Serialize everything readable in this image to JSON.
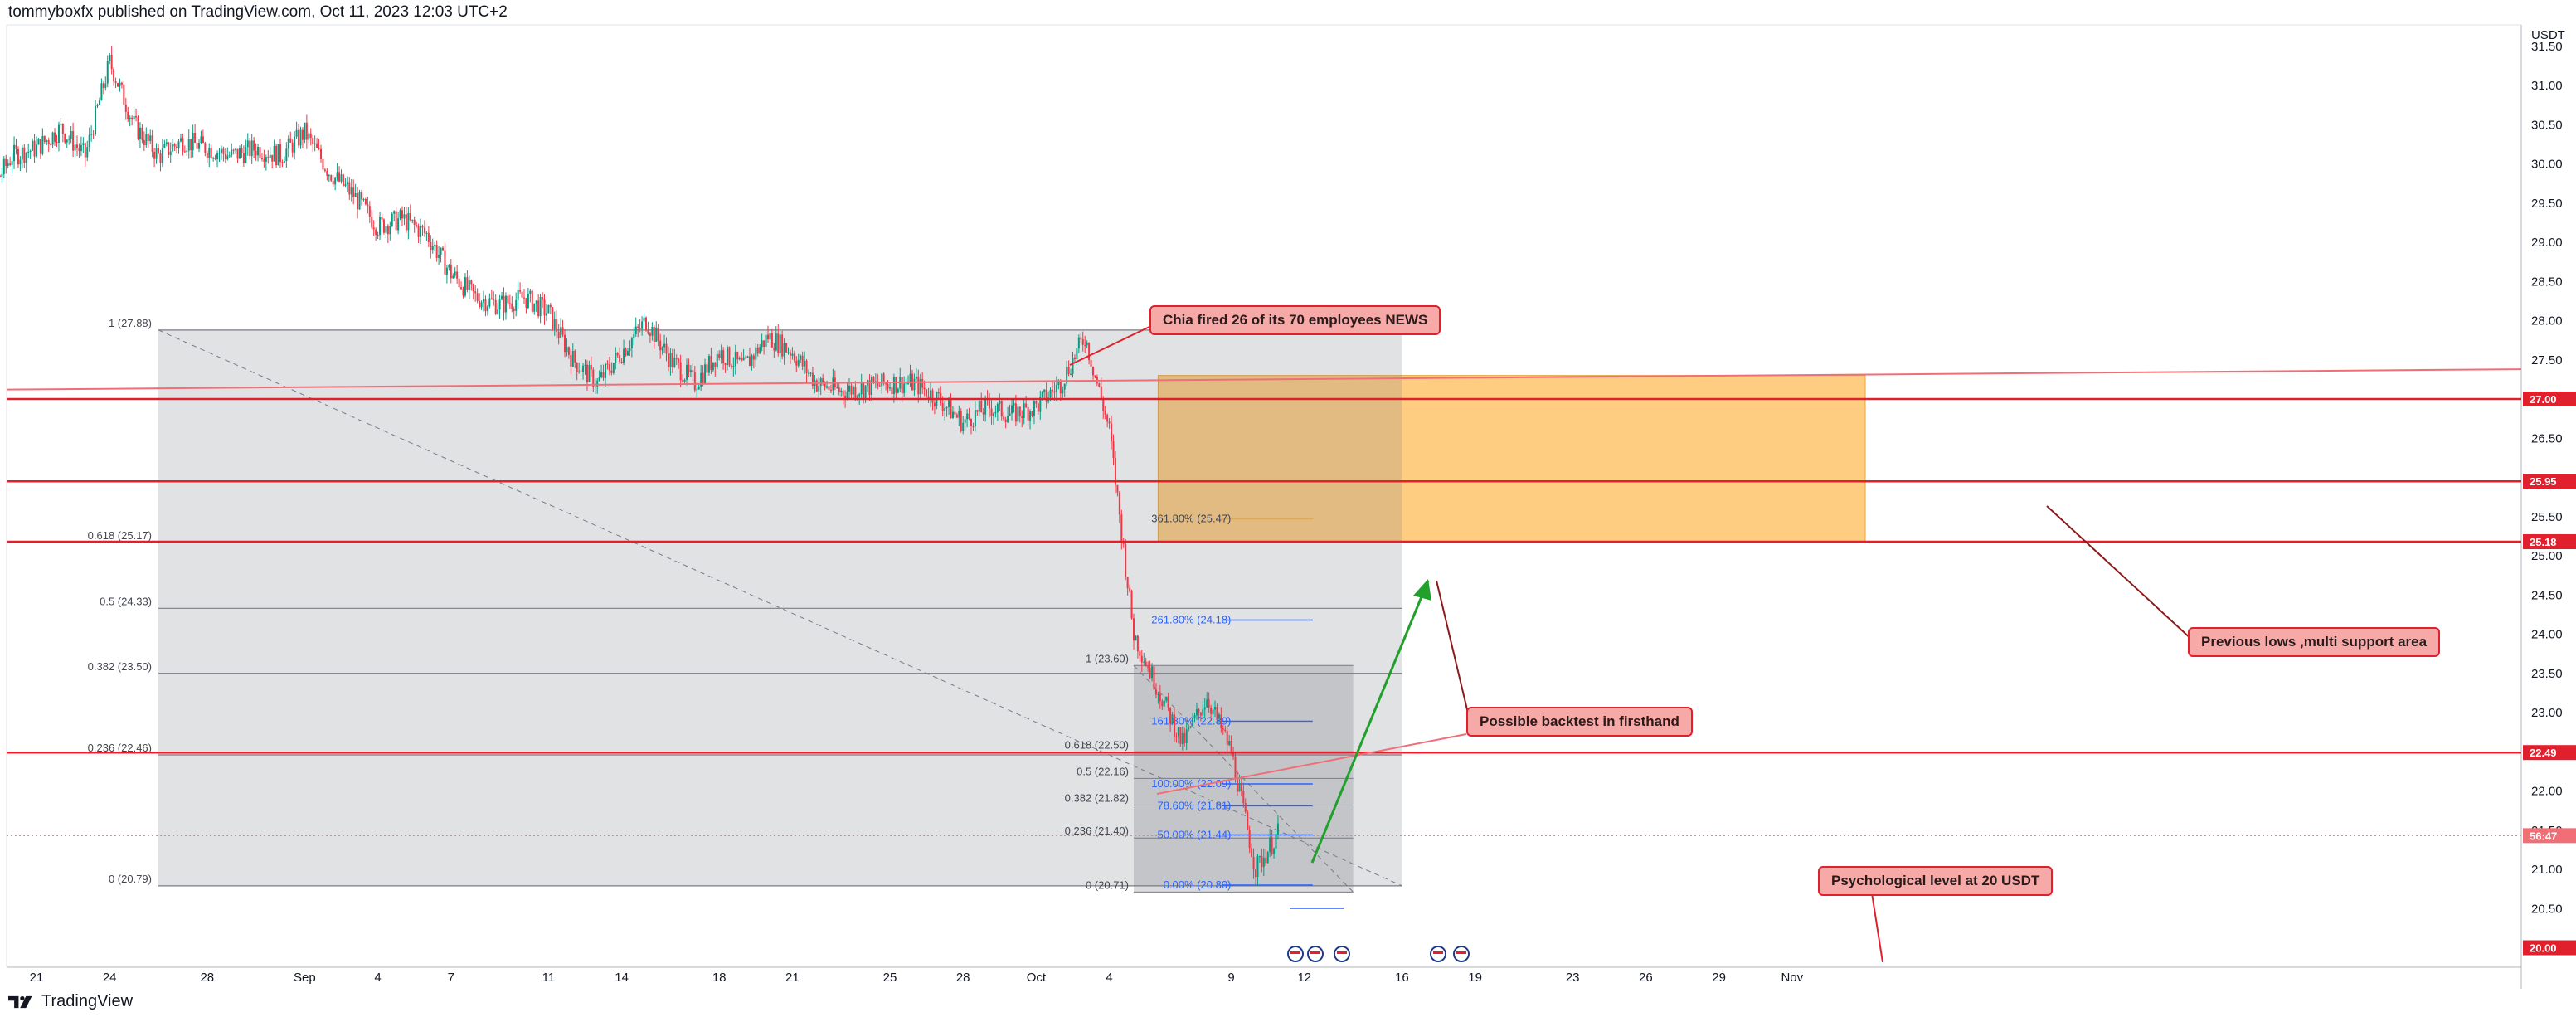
{
  "header": {
    "publisher": "tommyboxfx published on TradingView.com, Oct 11, 2023 12:03 UTC+2"
  },
  "footer": {
    "brand": "TradingView"
  },
  "chart_data": {
    "type": "candlestick",
    "currency_label": "USDT",
    "y_axis": {
      "ticks": [
        "31.50",
        "31.00",
        "30.50",
        "30.00",
        "29.50",
        "29.00",
        "28.50",
        "28.00",
        "27.50",
        "26.50",
        "25.50",
        "25.00",
        "24.50",
        "24.00",
        "23.50",
        "23.00",
        "22.00",
        "21.50",
        "21.00",
        "20.50"
      ]
    },
    "x_axis": {
      "ticks": [
        "21",
        "24",
        "28",
        "Sep",
        "4",
        "7",
        "11",
        "14",
        "18",
        "21",
        "25",
        "28",
        "Oct",
        "4",
        "9",
        "12",
        "16",
        "19",
        "23",
        "26",
        "29",
        "Nov"
      ]
    },
    "price_tags": [
      {
        "label": "27.00",
        "value": 27.0,
        "color": "#e0202d"
      },
      {
        "label": "25.95",
        "value": 25.95,
        "color": "#e0202d"
      },
      {
        "label": "25.18",
        "value": 25.18,
        "color": "#e0202d"
      },
      {
        "label": "22.49",
        "value": 22.49,
        "color": "#e0202d"
      },
      {
        "label": "56:47",
        "value": 21.43,
        "color": "#f06f77"
      },
      {
        "label": "20.00",
        "value": 20.0,
        "color": "#e0202d"
      }
    ],
    "horizontal_levels": [
      27.0,
      25.95,
      25.18,
      22.49
    ],
    "support_zone": {
      "from": 25.18,
      "to": 27.3,
      "start_date": "Oct 6",
      "end_date": "Nov 4",
      "color": "#ffc46b"
    },
    "fib_large": {
      "start_date": "Aug 26",
      "end_date": "Oct 16",
      "levels": [
        {
          "label": "1 (27.88)",
          "value": 27.88
        },
        {
          "label": "0.618 (25.17)",
          "value": 25.17
        },
        {
          "label": "0.5 (24.33)",
          "value": 24.33
        },
        {
          "label": "0.382 (23.50)",
          "value": 23.5
        },
        {
          "label": "0.236 (22.46)",
          "value": 22.46
        },
        {
          "label": "0 (20.79)",
          "value": 20.79
        }
      ]
    },
    "fib_small": {
      "start_date": "Oct 5",
      "end_date": "Oct 14",
      "levels": [
        {
          "label": "1 (23.60)",
          "value": 23.6
        },
        {
          "label": "0.618 (22.50)",
          "value": 22.5
        },
        {
          "label": "0.5 (22.16)",
          "value": 22.16
        },
        {
          "label": "0.382 (21.82)",
          "value": 21.82
        },
        {
          "label": "0.236 (21.40)",
          "value": 21.4
        },
        {
          "label": "0 (20.71)",
          "value": 20.71
        }
      ]
    },
    "fib_extension": {
      "levels": [
        {
          "label": "361.80% (25.47)",
          "value": 25.47
        },
        {
          "label": "261.80% (24.18)",
          "value": 24.18
        },
        {
          "label": "161.80% (22.89)",
          "value": 22.89
        },
        {
          "label": "100.00% (22.09)",
          "value": 22.09
        },
        {
          "label": "78.60% (21.81)",
          "value": 21.81
        },
        {
          "label": "50.00% (21.44)",
          "value": 21.44
        },
        {
          "label": "0.00% (20.80)",
          "value": 20.8
        }
      ]
    },
    "annotations": [
      {
        "text": "Chia fired 26 of its 70 employees NEWS"
      },
      {
        "text": "Previous lows ,multi support area"
      },
      {
        "text": "Possible backtest in firsthand"
      },
      {
        "text": "Psychological level at 20 USDT"
      }
    ],
    "price_path": [
      {
        "d": "Aug 18",
        "v": 29.1
      },
      {
        "d": "Aug 19",
        "v": 29.6
      },
      {
        "d": "Aug 20",
        "v": 30.1
      },
      {
        "d": "Aug 21",
        "v": 30.2
      },
      {
        "d": "Aug 22",
        "v": 30.45
      },
      {
        "d": "Aug 23",
        "v": 30.1
      },
      {
        "d": "Aug 24",
        "v": 31.3
      },
      {
        "d": "Aug 25",
        "v": 30.5
      },
      {
        "d": "Aug 26",
        "v": 30.1
      },
      {
        "d": "Aug 27",
        "v": 30.3
      },
      {
        "d": "Aug 28",
        "v": 30.2
      },
      {
        "d": "Aug 29",
        "v": 30.1
      },
      {
        "d": "Aug 30",
        "v": 30.2
      },
      {
        "d": "Aug 31",
        "v": 30.1
      },
      {
        "d": "Sep 1",
        "v": 30.4
      },
      {
        "d": "Sep 2",
        "v": 29.9
      },
      {
        "d": "Sep 3",
        "v": 29.6
      },
      {
        "d": "Sep 4",
        "v": 29.2
      },
      {
        "d": "Sep 5",
        "v": 29.3
      },
      {
        "d": "Sep 6",
        "v": 29.1
      },
      {
        "d": "Sep 7",
        "v": 28.6
      },
      {
        "d": "Sep 8",
        "v": 28.3
      },
      {
        "d": "Sep 9",
        "v": 28.2
      },
      {
        "d": "Sep 10",
        "v": 28.3
      },
      {
        "d": "Sep 11",
        "v": 28.1
      },
      {
        "d": "Sep 12",
        "v": 27.5
      },
      {
        "d": "Sep 13",
        "v": 27.2
      },
      {
        "d": "Sep 14",
        "v": 27.6
      },
      {
        "d": "Sep 15",
        "v": 28.0
      },
      {
        "d": "Sep 16",
        "v": 27.5
      },
      {
        "d": "Sep 17",
        "v": 27.2
      },
      {
        "d": "Sep 18",
        "v": 27.6
      },
      {
        "d": "Sep 19",
        "v": 27.4
      },
      {
        "d": "Sep 20",
        "v": 27.8
      },
      {
        "d": "Sep 21",
        "v": 27.6
      },
      {
        "d": "Sep 22",
        "v": 27.2
      },
      {
        "d": "Sep 23",
        "v": 27.1
      },
      {
        "d": "Sep 24",
        "v": 27.15
      },
      {
        "d": "Sep 25",
        "v": 27.2
      },
      {
        "d": "Sep 26",
        "v": 27.2
      },
      {
        "d": "Sep 27",
        "v": 27.0
      },
      {
        "d": "Sep 28",
        "v": 26.7
      },
      {
        "d": "Sep 29",
        "v": 26.9
      },
      {
        "d": "Sep 30",
        "v": 26.8
      },
      {
        "d": "Oct 1",
        "v": 26.9
      },
      {
        "d": "Oct 2",
        "v": 27.2
      },
      {
        "d": "Oct 3",
        "v": 27.8
      },
      {
        "d": "Oct 4",
        "v": 26.6
      },
      {
        "d": "Oct 5",
        "v": 24.0
      },
      {
        "d": "Oct 6",
        "v": 23.3
      },
      {
        "d": "Oct 7",
        "v": 22.6
      },
      {
        "d": "Oct 8",
        "v": 23.2
      },
      {
        "d": "Oct 9",
        "v": 22.5
      },
      {
        "d": "Oct 10",
        "v": 21.0
      },
      {
        "d": "Oct 11",
        "v": 21.5
      }
    ]
  }
}
